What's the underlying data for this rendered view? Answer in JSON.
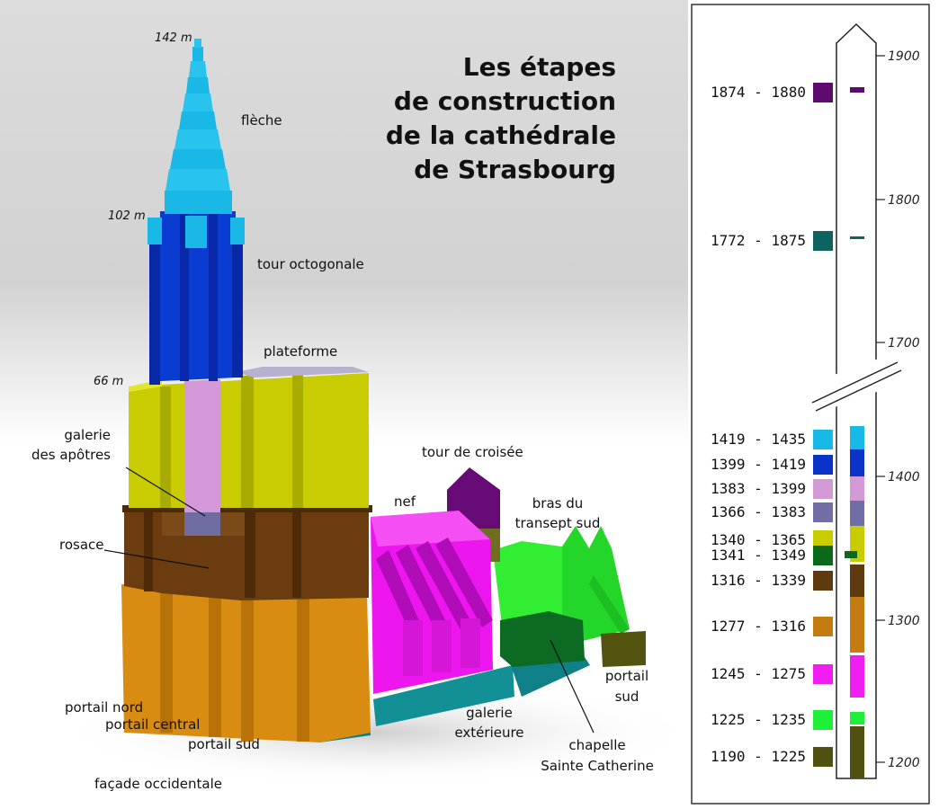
{
  "title": [
    "Les étapes",
    "de construction",
    "de la cathédrale",
    "de Strasbourg"
  ],
  "heights": [
    "142 m",
    "102 m",
    "66 m"
  ],
  "labels": {
    "fleche": "flèche",
    "tour_octogonale": "tour octogonale",
    "plateforme": "plateforme",
    "galerie_apotres": [
      "galerie",
      "des apôtres"
    ],
    "rosace": "rosace",
    "tour_croisee": "tour de croisée",
    "nef": "nef",
    "bras_transept": [
      "bras du",
      "transept sud"
    ],
    "portail_nord": "portail nord",
    "portail_central": "portail central",
    "portail_sud_facade": "portail sud",
    "facade_occidentale": "façade occidentale",
    "galerie_exterieure": [
      "galerie",
      "extérieure"
    ],
    "chapelle": [
      "chapelle",
      "Sainte Catherine"
    ],
    "portail_sud": [
      "portail",
      "sud"
    ]
  },
  "timeline": {
    "year_ticks": [
      "1900",
      "1800",
      "1700",
      "1400",
      "1300",
      "1200"
    ],
    "periods": [
      {
        "range": "1874 - 1880",
        "color": "#5e0a6e"
      },
      {
        "range": "1772 - 1875",
        "color": "#0d6360"
      },
      {
        "range": "1419 - 1435",
        "color": "#17b9e6"
      },
      {
        "range": "1399 - 1419",
        "color": "#0a33c8"
      },
      {
        "range": "1383 - 1399",
        "color": "#d49ad8"
      },
      {
        "range": "1366 - 1383",
        "color": "#706ea4"
      },
      {
        "range": "1340 - 1365",
        "color": "#c8cc00"
      },
      {
        "range": "1341 - 1349",
        "color": "#0a6a1a"
      },
      {
        "range": "1316 - 1339",
        "color": "#5e3a0e"
      },
      {
        "range": "1277 - 1316",
        "color": "#c47c10"
      },
      {
        "range": "1245 - 1275",
        "color": "#f01ef0"
      },
      {
        "range": "1225 - 1235",
        "color": "#1ef03a"
      },
      {
        "range": "1190 - 1225",
        "color": "#505010"
      }
    ]
  }
}
